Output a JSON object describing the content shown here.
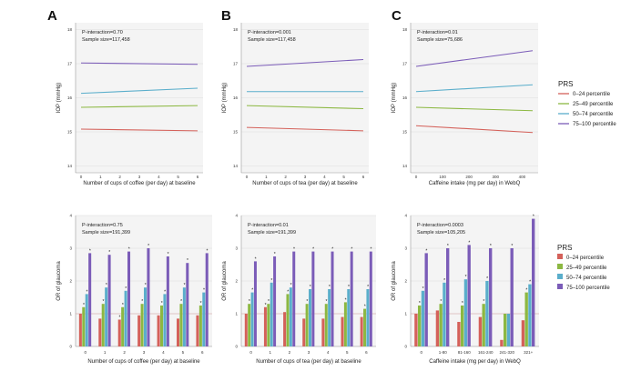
{
  "figure": {
    "series_colors": [
      "#d4615a",
      "#8cb842",
      "#5aaecb",
      "#7b5cb8"
    ],
    "legend_title": "PRS",
    "legend_labels": [
      "0–24 percentile",
      "25–49 percentile",
      "50–74 percentile",
      "75–100 percentile"
    ]
  },
  "chart_data": [
    {
      "panel": "A",
      "type": "line",
      "xlabel": "Number of cups of coffee (per day) at baseline",
      "ylabel": "IOP (mmHg)",
      "x_ticks": [
        0,
        1,
        2,
        3,
        4,
        5,
        6
      ],
      "ylim": [
        13.8,
        18.2
      ],
      "y_ticks": [
        14,
        15,
        16,
        17,
        18
      ],
      "annotations": [
        "P-interaction=0.70",
        "Sample size=117,458"
      ],
      "series": [
        {
          "name": "0–24 percentile",
          "x": [
            0,
            6
          ],
          "values": [
            15.08,
            15.03
          ]
        },
        {
          "name": "25–49 percentile",
          "x": [
            0,
            6
          ],
          "values": [
            15.72,
            15.77
          ]
        },
        {
          "name": "50–74 percentile",
          "x": [
            0,
            6
          ],
          "values": [
            16.13,
            16.28
          ]
        },
        {
          "name": "75–100 percentile",
          "x": [
            0,
            6
          ],
          "values": [
            17.02,
            16.98
          ]
        }
      ]
    },
    {
      "panel": "B",
      "type": "line",
      "xlabel": "Number of cups of tea (per day) at baseline",
      "ylabel": "IOP (mmHg)",
      "x_ticks": [
        0,
        1,
        2,
        3,
        4,
        5,
        6
      ],
      "ylim": [
        13.8,
        18.2
      ],
      "y_ticks": [
        14,
        15,
        16,
        17,
        18
      ],
      "annotations": [
        "P-interaction=0.001",
        "Sample size=117,458"
      ],
      "series": [
        {
          "name": "0–24 percentile",
          "x": [
            0,
            6
          ],
          "values": [
            15.13,
            15.03
          ]
        },
        {
          "name": "25–49 percentile",
          "x": [
            0,
            6
          ],
          "values": [
            15.77,
            15.68
          ]
        },
        {
          "name": "50–74 percentile",
          "x": [
            0,
            6
          ],
          "values": [
            16.18,
            16.18
          ]
        },
        {
          "name": "75–100 percentile",
          "x": [
            0,
            6
          ],
          "values": [
            16.92,
            17.12
          ]
        }
      ]
    },
    {
      "panel": "C",
      "type": "line",
      "xlabel": "Caffeine intake (mg per day) in WebQ",
      "ylabel": "IOP (mmHg)",
      "x_ticks": [
        0,
        100,
        200,
        300,
        400
      ],
      "x_range": [
        0,
        440
      ],
      "ylim": [
        13.8,
        18.2
      ],
      "y_ticks": [
        14,
        15,
        16,
        17,
        18
      ],
      "annotations": [
        "P-interaction=0.01",
        "Sample size=75,686"
      ],
      "series": [
        {
          "name": "0–24 percentile",
          "x": [
            0,
            440
          ],
          "values": [
            15.18,
            14.98
          ]
        },
        {
          "name": "25–49 percentile",
          "x": [
            0,
            440
          ],
          "values": [
            15.72,
            15.62
          ]
        },
        {
          "name": "50–74 percentile",
          "x": [
            0,
            440
          ],
          "values": [
            16.18,
            16.38
          ]
        },
        {
          "name": "75–100 percentile",
          "x": [
            0,
            440
          ],
          "values": [
            16.92,
            17.38
          ]
        }
      ]
    },
    {
      "panel": "A2",
      "type": "bar",
      "xlabel": "Number of cups of coffee (per day) at baseline",
      "ylabel": "OR of glaucoma",
      "categories": [
        "0",
        "1",
        "2",
        "3",
        "4",
        "5",
        "6"
      ],
      "ylim": [
        0,
        4
      ],
      "y_ticks": [
        0,
        1,
        2,
        3,
        4
      ],
      "annotations": [
        "P-interaction=0.75",
        "Sample size=191,399"
      ],
      "series": [
        {
          "name": "0–24 percentile",
          "values": [
            1.0,
            0.85,
            0.82,
            0.95,
            0.95,
            0.85,
            0.95
          ]
        },
        {
          "name": "25–49 percentile",
          "values": [
            1.2,
            1.3,
            1.2,
            1.3,
            1.25,
            1.3,
            1.25
          ]
        },
        {
          "name": "50–74 percentile",
          "values": [
            1.6,
            1.8,
            1.7,
            1.8,
            1.6,
            1.8,
            1.65
          ]
        },
        {
          "name": "75–100 percentile",
          "values": [
            2.85,
            2.8,
            2.9,
            3.0,
            2.75,
            2.55,
            2.85
          ]
        }
      ],
      "significance": [
        [
          0,
          1,
          1,
          1
        ],
        [
          0,
          1,
          1,
          1
        ],
        [
          1,
          1,
          1,
          1
        ],
        [
          0,
          1,
          1,
          1
        ],
        [
          0,
          1,
          1,
          1
        ],
        [
          0,
          1,
          1,
          1
        ],
        [
          0,
          1,
          1,
          1
        ]
      ]
    },
    {
      "panel": "B2",
      "type": "bar",
      "xlabel": "Number of cups of tea (per day) at baseline",
      "ylabel": "OR of glaucoma",
      "categories": [
        "0",
        "1",
        "2",
        "3",
        "4",
        "5",
        "6"
      ],
      "ylim": [
        0,
        4
      ],
      "y_ticks": [
        0,
        1,
        2,
        3,
        4
      ],
      "annotations": [
        "P-interaction=0.01",
        "Sample size=191,399"
      ],
      "series": [
        {
          "name": "0–24 percentile",
          "values": [
            1.0,
            1.2,
            1.05,
            0.85,
            0.85,
            0.9,
            0.9
          ]
        },
        {
          "name": "25–49 percentile",
          "values": [
            1.3,
            1.3,
            1.6,
            1.3,
            1.3,
            1.35,
            1.15
          ]
        },
        {
          "name": "50–74 percentile",
          "values": [
            1.65,
            1.95,
            1.8,
            1.75,
            1.75,
            1.75,
            1.75
          ]
        },
        {
          "name": "75–100 percentile",
          "values": [
            2.6,
            2.75,
            2.9,
            2.9,
            2.9,
            2.9,
            2.9
          ]
        }
      ],
      "significance": [
        [
          0,
          1,
          1,
          1
        ],
        [
          1,
          1,
          1,
          1
        ],
        [
          0,
          1,
          1,
          1
        ],
        [
          0,
          1,
          1,
          1
        ],
        [
          0,
          1,
          1,
          1
        ],
        [
          0,
          1,
          1,
          1
        ],
        [
          0,
          1,
          1,
          1
        ]
      ]
    },
    {
      "panel": "C2",
      "type": "bar",
      "xlabel": "Caffeine intake (mg per day) in WebQ",
      "ylabel": "OR of glaucoma",
      "categories": [
        "0",
        "1-80",
        "81-160",
        "161-240",
        "241-320",
        "321+"
      ],
      "ylim": [
        0,
        4
      ],
      "y_ticks": [
        0,
        1,
        2,
        3,
        4
      ],
      "annotations": [
        "P-interaction=0.0003",
        "Sample size=105,205"
      ],
      "series": [
        {
          "name": "0–24 percentile",
          "values": [
            1.0,
            1.1,
            0.75,
            0.9,
            0.2,
            0.8
          ]
        },
        {
          "name": "25–49 percentile",
          "values": [
            1.25,
            1.3,
            1.25,
            1.3,
            1.0,
            1.65
          ]
        },
        {
          "name": "50–74 percentile",
          "values": [
            1.7,
            1.95,
            2.05,
            2.0,
            1.0,
            1.9
          ]
        },
        {
          "name": "75–100 percentile",
          "values": [
            2.85,
            3.0,
            3.1,
            3.0,
            3.0,
            3.9
          ]
        }
      ],
      "significance": [
        [
          0,
          1,
          1,
          1
        ],
        [
          0,
          1,
          1,
          1
        ],
        [
          0,
          1,
          1,
          1
        ],
        [
          0,
          1,
          1,
          1
        ],
        [
          0,
          0,
          0,
          1
        ],
        [
          0,
          1,
          1,
          1
        ]
      ]
    }
  ]
}
